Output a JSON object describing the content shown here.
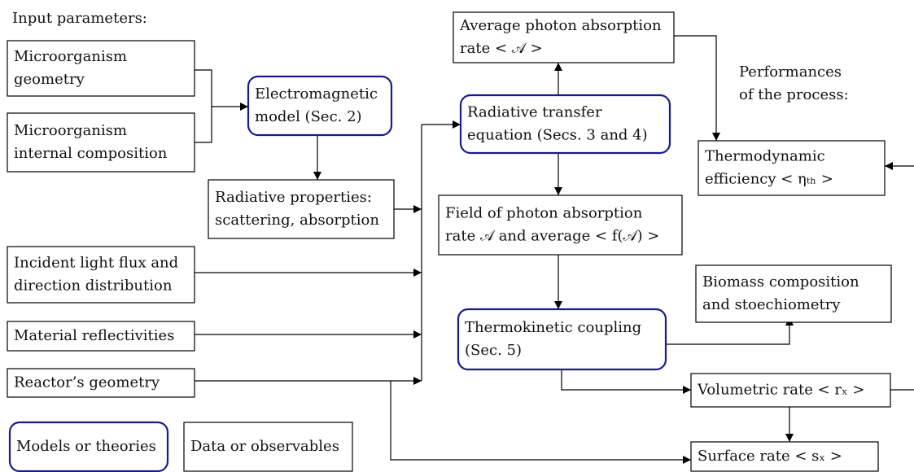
{
  "heading": "Input parameters:",
  "performances": [
    "Performances",
    "of the process:"
  ],
  "nodes": [
    {
      "kind": "data",
      "lines": [
        "Microorganism",
        "geometry"
      ]
    },
    {
      "kind": "data",
      "lines": [
        "Microorganism",
        "internal composition"
      ]
    },
    {
      "kind": "model",
      "lines": [
        "Electromagnetic",
        "model (Sec. 2)"
      ]
    },
    {
      "kind": "data",
      "lines": [
        "Radiative properties:",
        "scattering, absorption"
      ]
    },
    {
      "kind": "data",
      "lines": [
        "Incident light flux and",
        "direction distribution"
      ]
    },
    {
      "kind": "data",
      "lines": [
        "Material reflectivities"
      ]
    },
    {
      "kind": "data",
      "lines": [
        "Reactor’s geometry"
      ]
    },
    {
      "kind": "model",
      "lines": [
        "Models or theories"
      ]
    },
    {
      "kind": "data",
      "lines": [
        "Data or observables"
      ]
    },
    {
      "kind": "data",
      "lines": [
        "Average photon absorption",
        "rate < 𝒜 >"
      ]
    },
    {
      "kind": "model",
      "lines": [
        "Radiative transfer",
        "equation (Secs. 3 and 4)"
      ]
    },
    {
      "kind": "data",
      "lines": [
        "Field of photon absorption",
        "rate 𝒜 and average < f(𝒜) >"
      ]
    },
    {
      "kind": "model",
      "lines": [
        "Thermokinetic coupling",
        "(Sec. 5)"
      ]
    },
    {
      "kind": "data",
      "lines": [
        "Thermodynamic",
        "efficiency < ηₜₕ >"
      ]
    },
    {
      "kind": "data",
      "lines": [
        "Biomass composition",
        "and stoechiometry"
      ]
    },
    {
      "kind": "data",
      "lines": [
        "Volumetric rate < rₓ >"
      ]
    },
    {
      "kind": "data",
      "lines": [
        "Surface rate < sₓ >"
      ]
    }
  ]
}
